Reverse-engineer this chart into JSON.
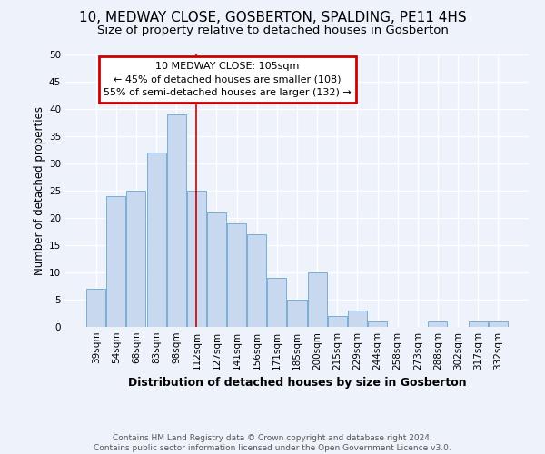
{
  "title": "10, MEDWAY CLOSE, GOSBERTON, SPALDING, PE11 4HS",
  "subtitle": "Size of property relative to detached houses in Gosberton",
  "xlabel": "Distribution of detached houses by size in Gosberton",
  "ylabel": "Number of detached properties",
  "categories": [
    "39sqm",
    "54sqm",
    "68sqm",
    "83sqm",
    "98sqm",
    "112sqm",
    "127sqm",
    "141sqm",
    "156sqm",
    "171sqm",
    "185sqm",
    "200sqm",
    "215sqm",
    "229sqm",
    "244sqm",
    "258sqm",
    "273sqm",
    "288sqm",
    "302sqm",
    "317sqm",
    "332sqm"
  ],
  "values": [
    7,
    24,
    25,
    32,
    39,
    25,
    21,
    19,
    17,
    9,
    5,
    10,
    2,
    3,
    1,
    0,
    0,
    1,
    0,
    1,
    1
  ],
  "bar_color": "#c8d8ee",
  "bar_edge_color": "#7aaed4",
  "background_color": "#eef2fa",
  "grid_color": "#ffffff",
  "marker_bar_index": 5,
  "marker_color": "#cc0000",
  "annotation_text": "10 MEDWAY CLOSE: 105sqm\n← 45% of detached houses are smaller (108)\n55% of semi-detached houses are larger (132) →",
  "annotation_box_color": "#ffffff",
  "annotation_box_edge_color": "#cc0000",
  "ylim": [
    0,
    50
  ],
  "yticks": [
    0,
    5,
    10,
    15,
    20,
    25,
    30,
    35,
    40,
    45,
    50
  ],
  "footnote": "Contains HM Land Registry data © Crown copyright and database right 2024.\nContains public sector information licensed under the Open Government Licence v3.0.",
  "title_fontsize": 11,
  "subtitle_fontsize": 9.5,
  "ylabel_fontsize": 8.5,
  "xlabel_fontsize": 9,
  "tick_fontsize": 7.5,
  "annotation_fontsize": 8,
  "footnote_fontsize": 6.5
}
